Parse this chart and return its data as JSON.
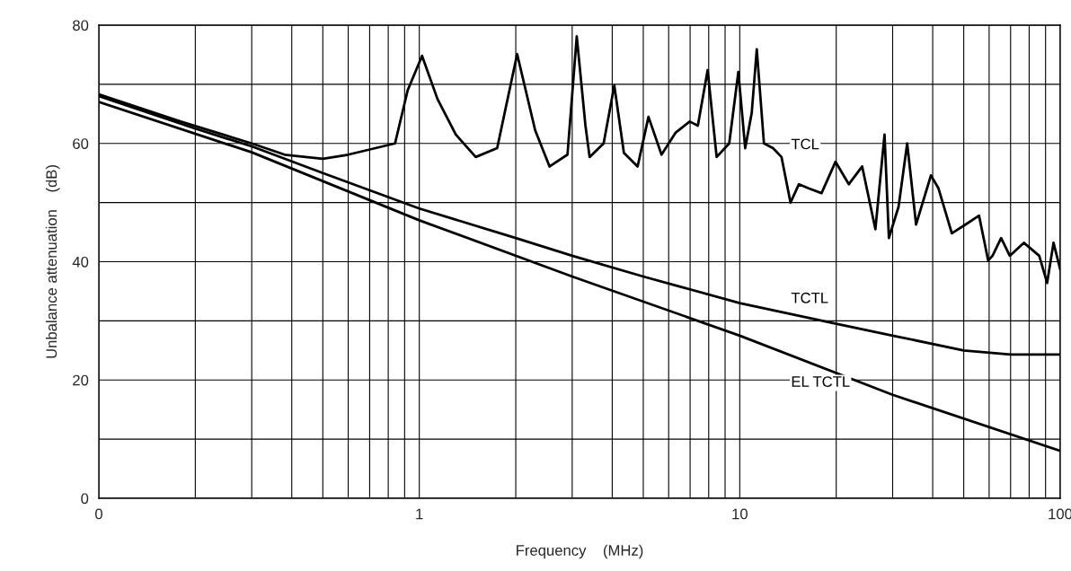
{
  "chart_data": {
    "type": "line",
    "xlabel": "Frequency    (MHz)",
    "ylabel": "Unbalance attenuation    (dB)",
    "log": "x",
    "grid": true,
    "marker": "none",
    "line_style": "solid",
    "xlim": [
      0.1,
      100
    ],
    "ylim": [
      0,
      80
    ],
    "xticks": [
      {
        "value": 0.1,
        "label": "0"
      },
      {
        "value": 0.2,
        "label": null
      },
      {
        "value": 0.3,
        "label": null
      },
      {
        "value": 0.4,
        "label": null
      },
      {
        "value": 0.5,
        "label": null
      },
      {
        "value": 0.6,
        "label": null
      },
      {
        "value": 0.7,
        "label": null
      },
      {
        "value": 0.8,
        "label": null
      },
      {
        "value": 0.9,
        "label": null
      },
      1,
      {
        "value": 2,
        "label": null
      },
      {
        "value": 3,
        "label": null
      },
      {
        "value": 4,
        "label": null
      },
      {
        "value": 5,
        "label": null
      },
      {
        "value": 6,
        "label": null
      },
      {
        "value": 7,
        "label": null
      },
      {
        "value": 8,
        "label": null
      },
      {
        "value": 9,
        "label": null
      },
      10,
      {
        "value": 20,
        "label": null
      },
      {
        "value": 30,
        "label": null
      },
      {
        "value": 40,
        "label": null
      },
      {
        "value": 50,
        "label": null
      },
      {
        "value": 60,
        "label": null
      },
      {
        "value": 70,
        "label": null
      },
      {
        "value": 80,
        "label": null
      },
      {
        "value": 90,
        "label": null
      },
      100
    ],
    "yticks": [
      0,
      {
        "value": 10,
        "label": null
      },
      20,
      {
        "value": 30,
        "label": null
      },
      40,
      {
        "value": 50,
        "label": null
      },
      60,
      {
        "value": 70,
        "label": null
      },
      80
    ],
    "series": [
      {
        "name": "TCL",
        "color": "#000000",
        "x": [
          0.1,
          0.18,
          0.3,
          0.38,
          0.5,
          0.6,
          0.84,
          0.92,
          1.02,
          1.14,
          1.3,
          1.5,
          1.75,
          2.02,
          2.3,
          2.55,
          2.9,
          3.1,
          3.3,
          3.4,
          3.76,
          4.06,
          4.35,
          4.8,
          5.19,
          5.7,
          6.3,
          6.98,
          7.4,
          7.94,
          8.47,
          9.27,
          9.9,
          10.4,
          10.9,
          11.3,
          11.9,
          12.7,
          13.5,
          14.4,
          15.3,
          16.4,
          18,
          19.9,
          21.9,
          24.1,
          26.5,
          28.3,
          29.2,
          31.3,
          33.3,
          35.5,
          39.5,
          41.7,
          45.9,
          50.7,
          55.8,
          59.6,
          61.5,
          65.4,
          69.6,
          77,
          86,
          91,
          95.3,
          100
        ],
        "values": [
          68.3,
          63.7,
          60,
          58.1,
          57.4,
          58.1,
          60,
          69,
          74.8,
          67.5,
          61.5,
          57.7,
          59.2,
          75.1,
          62.2,
          56.1,
          58.1,
          78.1,
          63,
          57.7,
          60,
          69.8,
          58.4,
          56.1,
          64.5,
          58.1,
          61.8,
          63.7,
          63,
          72.4,
          57.7,
          60,
          72.1,
          59.2,
          65.2,
          75.9,
          60,
          59.2,
          57.7,
          50,
          53.1,
          52.4,
          51.6,
          56.9,
          53.1,
          56.1,
          45.5,
          61.5,
          44,
          49.3,
          60,
          46.3,
          54.6,
          52.4,
          44.8,
          46.3,
          47.8,
          40.2,
          41,
          44,
          41,
          43.2,
          41,
          36.4,
          43.2,
          38.7
        ]
      },
      {
        "name": "TCTL",
        "color": "#000000",
        "x": [
          0.1,
          0.2,
          0.3,
          0.5,
          1,
          2,
          3,
          5,
          10,
          20,
          30,
          50,
          70,
          100
        ],
        "values": [
          68,
          62.5,
          59.5,
          55,
          49,
          44,
          41,
          37.5,
          33,
          29.5,
          27.5,
          25,
          24.3,
          24.3
        ]
      },
      {
        "name": "EL TCTL",
        "color": "#000000",
        "x": [
          0.1,
          0.3,
          1,
          3,
          10,
          30,
          100
        ],
        "values": [
          67,
          58.5,
          47,
          37.5,
          27.5,
          17.5,
          8
        ]
      }
    ]
  }
}
